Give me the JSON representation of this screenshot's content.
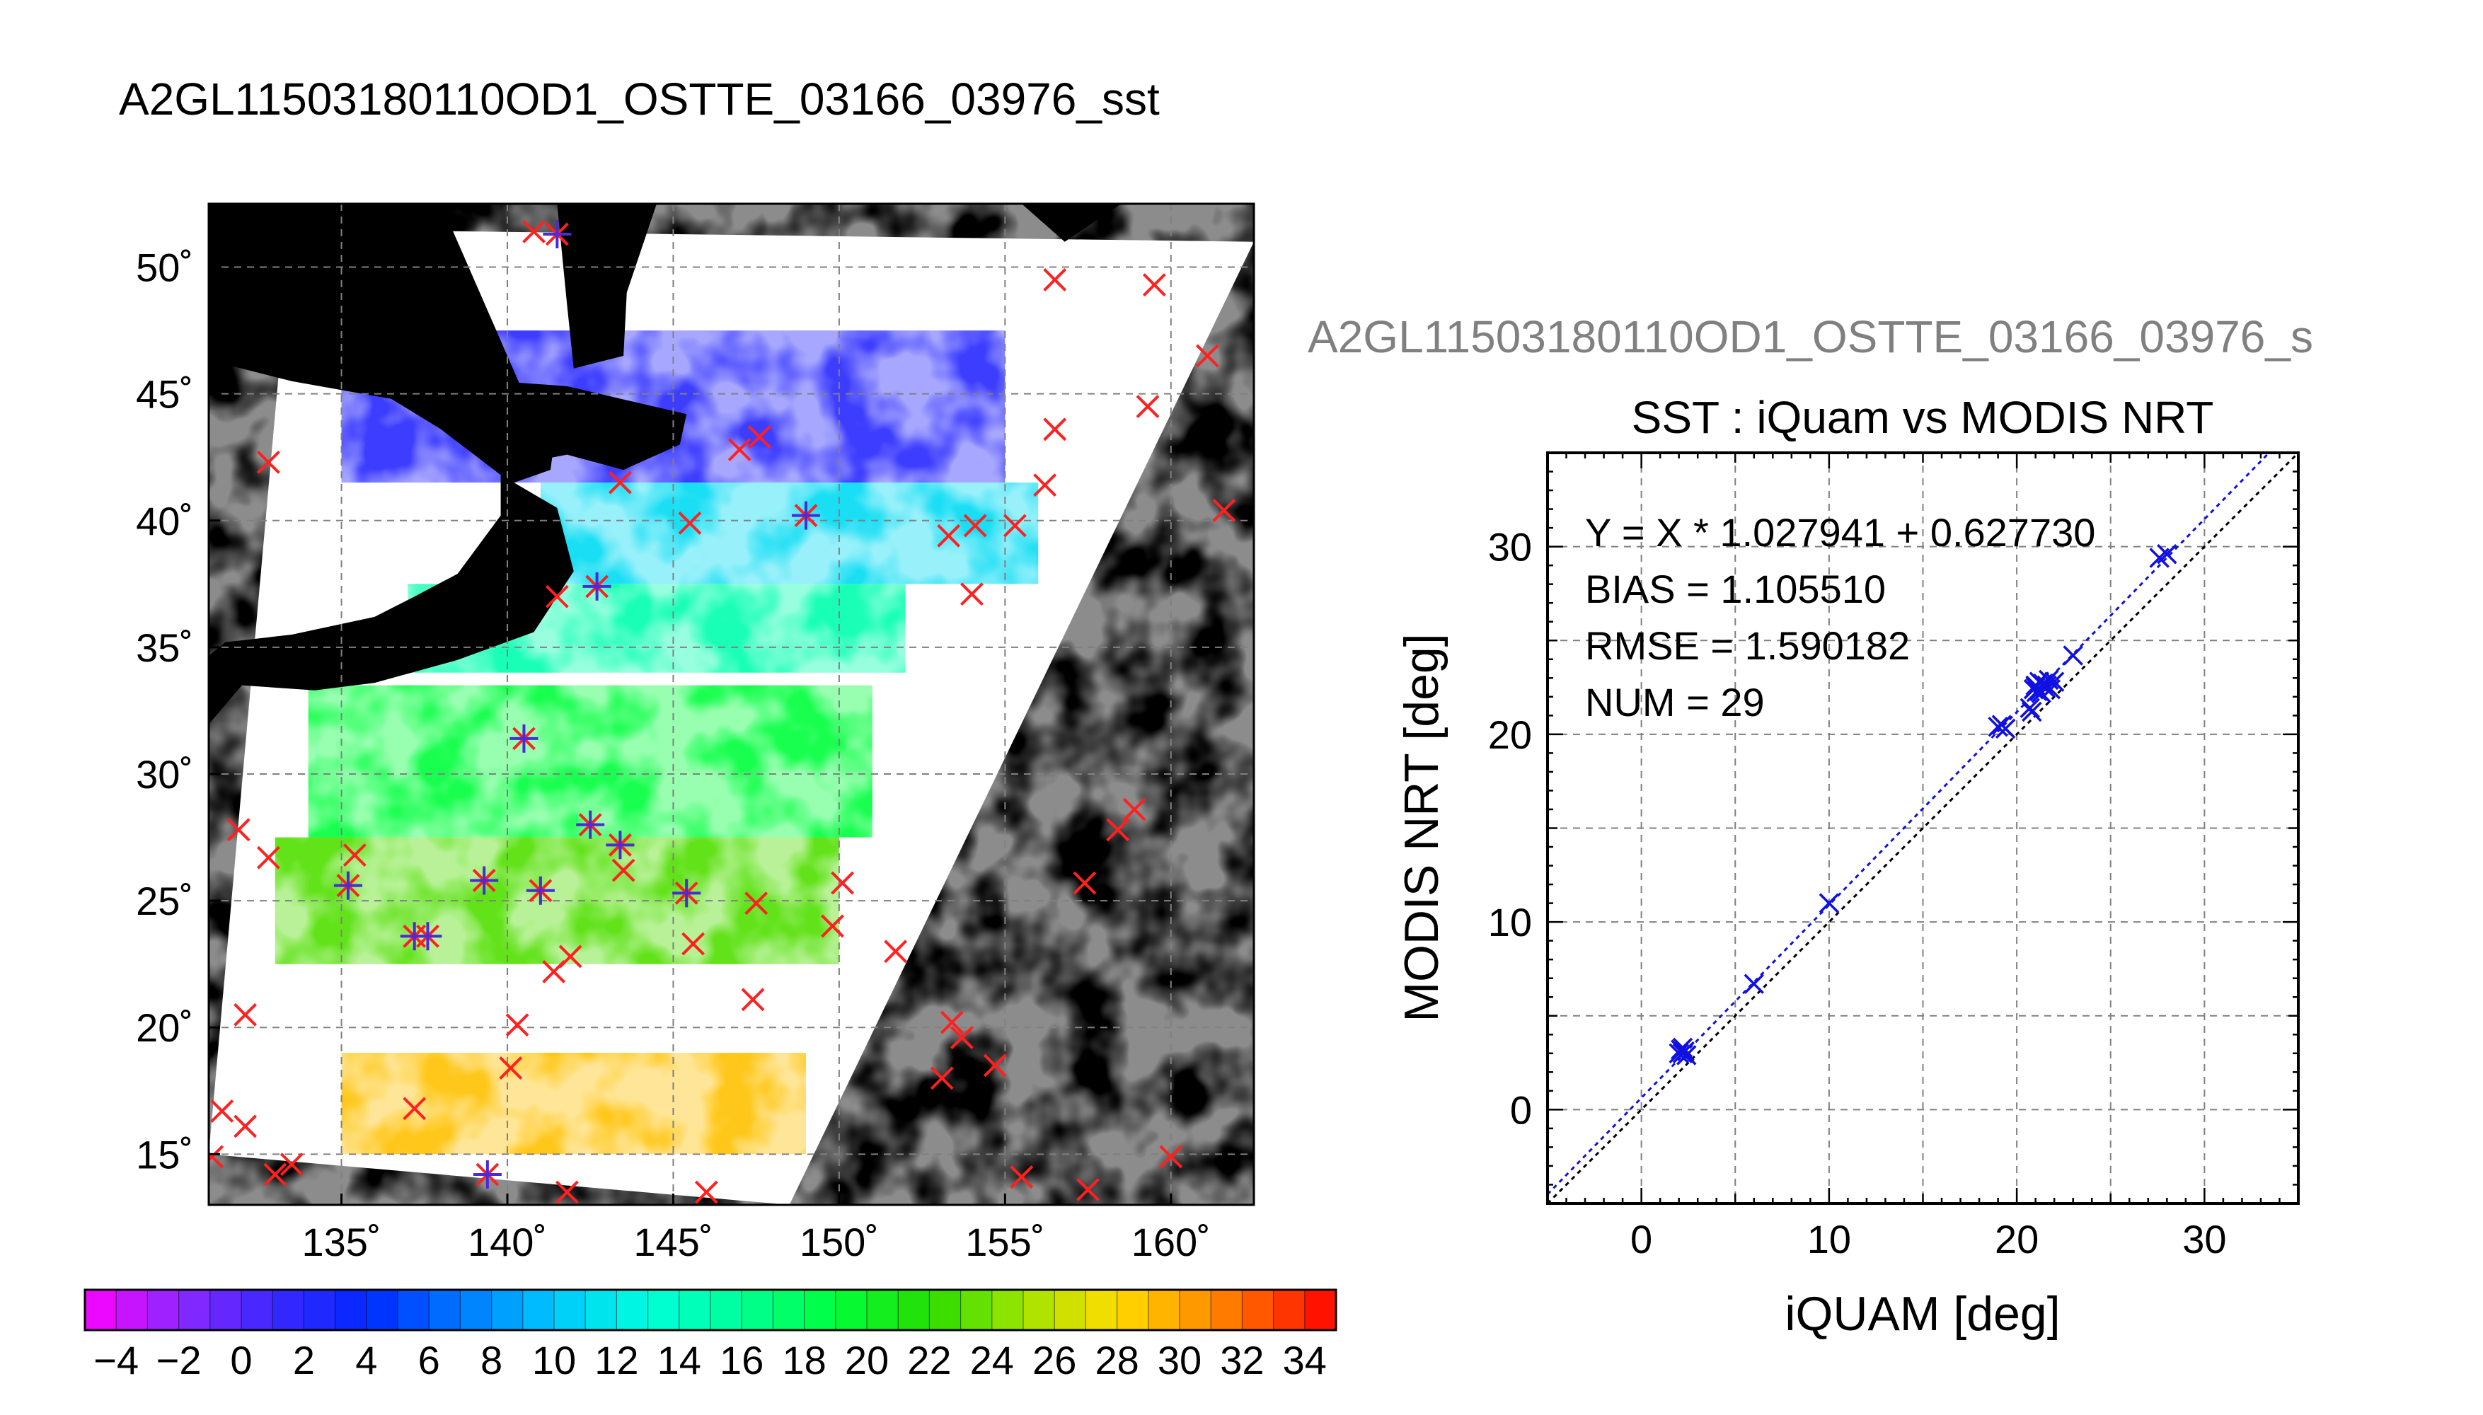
{
  "main_title": "A2GL11503180110OD1_OSTTE_03166_03976_sst",
  "chart_data": [
    {
      "type": "map",
      "title": "A2GL11503180110OD1_OSTTE_03166_03976_sst",
      "lon_range": [
        131,
        162.5
      ],
      "lat_range": [
        13,
        52.5
      ],
      "lon_ticks": [
        135,
        140,
        145,
        150,
        155,
        160
      ],
      "lat_ticks": [
        15,
        20,
        25,
        30,
        35,
        40,
        45,
        50
      ],
      "lon_tick_labels": [
        "135˚",
        "140˚",
        "145˚",
        "150˚",
        "155˚",
        "160˚"
      ],
      "lat_tick_labels": [
        "15˚",
        "20˚",
        "25˚",
        "30˚",
        "35˚",
        "40˚",
        "45˚",
        "50˚"
      ],
      "grid": true,
      "background_color": "#000000",
      "cloud_color": "#ffffff",
      "swath_corners": [
        [
          133.5,
          51.5
        ],
        [
          162.5,
          51.0
        ],
        [
          148.5,
          13.0
        ],
        [
          131.0,
          15.0
        ]
      ],
      "sst_bands": [
        {
          "lat_min": 41.5,
          "lat_max": 47.5,
          "lon_min": 135,
          "lon_max": 155,
          "sst": 2
        },
        {
          "lat_min": 37.5,
          "lat_max": 41.5,
          "lon_min": 141,
          "lon_max": 156,
          "sst": 11
        },
        {
          "lat_min": 34,
          "lat_max": 37.5,
          "lon_min": 137,
          "lon_max": 152,
          "sst": 15
        },
        {
          "lat_min": 27.5,
          "lat_max": 33.5,
          "lon_min": 134,
          "lon_max": 151,
          "sst": 19
        },
        {
          "lat_min": 22.5,
          "lat_max": 27.5,
          "lon_min": 133,
          "lon_max": 150,
          "sst": 23
        },
        {
          "lat_min": 15,
          "lat_max": 19,
          "lon_min": 135,
          "lon_max": 149,
          "sst": 29
        }
      ],
      "insitu_unmatched": [
        [
          140.8,
          51.4
        ],
        [
          156.5,
          49.5
        ],
        [
          159.5,
          49.3
        ],
        [
          161.1,
          46.5
        ],
        [
          159.3,
          44.5
        ],
        [
          156.5,
          43.6
        ],
        [
          132.8,
          42.3
        ],
        [
          147.0,
          42.8
        ],
        [
          147.6,
          43.3
        ],
        [
          156.2,
          41.4
        ],
        [
          143.4,
          41.5
        ],
        [
          161.6,
          40.4
        ],
        [
          145.5,
          39.9
        ],
        [
          153.3,
          39.4
        ],
        [
          154.1,
          39.8
        ],
        [
          155.3,
          39.8
        ],
        [
          141.5,
          37.0
        ],
        [
          154.0,
          37.1
        ],
        [
          131.9,
          27.8
        ],
        [
          132.8,
          26.7
        ],
        [
          135.4,
          26.8
        ],
        [
          143.5,
          26.2
        ],
        [
          150.1,
          25.7
        ],
        [
          149.8,
          24.0
        ],
        [
          145.6,
          23.3
        ],
        [
          147.5,
          24.9
        ],
        [
          151.7,
          23.0
        ],
        [
          141.9,
          22.8
        ],
        [
          141.4,
          22.2
        ],
        [
          147.4,
          21.1
        ],
        [
          140.3,
          20.1
        ],
        [
          140.1,
          18.4
        ],
        [
          132.1,
          20.5
        ],
        [
          131.4,
          16.7
        ],
        [
          132.1,
          16.1
        ],
        [
          137.2,
          16.8
        ],
        [
          153.4,
          20.2
        ],
        [
          153.7,
          19.6
        ],
        [
          154.7,
          18.5
        ],
        [
          153.1,
          18.0
        ],
        [
          157.4,
          25.7
        ],
        [
          158.4,
          27.8
        ],
        [
          158.9,
          28.6
        ],
        [
          160.0,
          14.9
        ],
        [
          157.5,
          13.6
        ],
        [
          155.5,
          14.1
        ],
        [
          131.1,
          14.9
        ],
        [
          133.0,
          14.2
        ],
        [
          133.5,
          14.6
        ],
        [
          141.8,
          13.5
        ],
        [
          146.0,
          13.5
        ]
      ],
      "insitu_matched": [
        [
          141.5,
          51.3
        ],
        [
          149.0,
          40.2
        ],
        [
          142.7,
          37.4
        ],
        [
          140.5,
          31.4
        ],
        [
          142.5,
          28.0
        ],
        [
          143.4,
          27.2
        ],
        [
          135.2,
          25.6
        ],
        [
          139.3,
          25.8
        ],
        [
          141.0,
          25.4
        ],
        [
          145.4,
          25.3
        ],
        [
          137.2,
          23.6
        ],
        [
          137.6,
          23.6
        ],
        [
          139.4,
          14.2
        ]
      ],
      "colorbar": {
        "min": -5,
        "max": 35,
        "ticks": [
          -4,
          -2,
          0,
          2,
          4,
          6,
          8,
          10,
          12,
          14,
          16,
          18,
          20,
          22,
          24,
          26,
          28,
          30,
          32,
          34
        ],
        "tick_labels": [
          "−4",
          "−2",
          "0",
          "2",
          "4",
          "6",
          "8",
          "10",
          "12",
          "14",
          "16",
          "18",
          "20",
          "22",
          "24",
          "26",
          "28",
          "30",
          "32",
          "34"
        ]
      }
    },
    {
      "type": "scatter",
      "title": "SST : iQuam vs MODIS NRT",
      "xlabel": "iQUAM [deg]",
      "ylabel": "MODIS NRT [deg]",
      "xlim": [
        -5,
        35
      ],
      "ylim": [
        -5,
        35
      ],
      "x_ticks": [
        0,
        10,
        20,
        30
      ],
      "y_ticks": [
        0,
        10,
        20,
        30
      ],
      "grid": true,
      "stats": [
        "Y = X * 1.027941 + 0.627730",
        "BIAS = 1.105510",
        "RMSE = 1.590182",
        "NUM = 29"
      ],
      "fit": {
        "slope": 1.027941,
        "intercept": 0.62773
      },
      "points": {
        "x": [
          2.0,
          2.2,
          2.3,
          2.4,
          6.0,
          10.0,
          19.0,
          19.4,
          20.8,
          20.9,
          21.0,
          21.1,
          21.2,
          21.3,
          21.5,
          21.7,
          21.8,
          23.0,
          27.6,
          28.0,
          2.1,
          21.4,
          20.7,
          21.6,
          19.2,
          21.0,
          22.0,
          21.2,
          2.2
        ],
        "y": [
          3.0,
          3.3,
          3.1,
          2.9,
          6.7,
          11.0,
          20.4,
          20.3,
          21.2,
          22.4,
          22.6,
          22.3,
          22.8,
          22.2,
          22.5,
          22.9,
          22.4,
          24.2,
          29.4,
          29.6,
          3.2,
          22.7,
          21.4,
          22.6,
          20.5,
          22.5,
          22.8,
          22.3,
          3.0
        ]
      },
      "subplot_title": "A2GL11503180110OD1_OSTTE_03166_03976_s"
    }
  ],
  "colors": {
    "unmatched_marker": "#ff2020",
    "matched_marker": "#4b2ad8",
    "scatter_marker": "#1010e0",
    "fit_line": "#1010e0",
    "one_to_one_line": "#000000",
    "subtitle_gray": "#808080",
    "grid": "#808080"
  }
}
